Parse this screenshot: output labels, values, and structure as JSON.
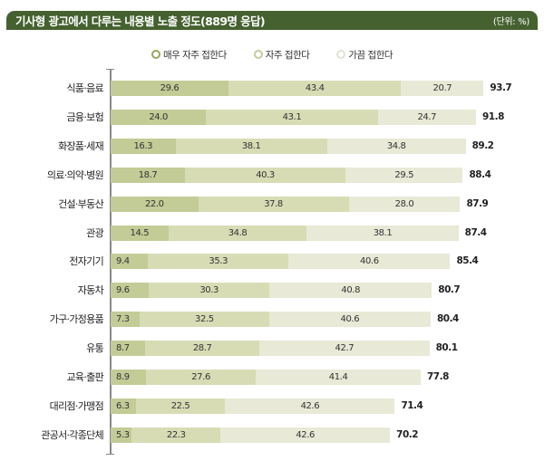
{
  "header": {
    "title": "기사형 광고에서 다루는 내용별 노출 정도(889명 응답)",
    "unit": "(단위: %)",
    "background": "#44612f"
  },
  "legend": [
    {
      "label": "매우 자주 접한다",
      "color": "#9aa55d"
    },
    {
      "label": "자주 접한다",
      "color": "#c6cc9c"
    },
    {
      "label": "가끔 접한다",
      "color": "#e2e3cf"
    }
  ],
  "colors": {
    "very_often": "#c3cb96",
    "often": "#d8dcb5",
    "sometimes": "#e8e9d6",
    "axis": "#888888"
  },
  "rows": [
    {
      "label": "식품·음료",
      "v1": "29.6",
      "v2": "43.4",
      "v3": "20.7",
      "total": "93.7"
    },
    {
      "label": "금융·보험",
      "v1": "24.0",
      "v2": "43.1",
      "v3": "24.7",
      "total": "91.8"
    },
    {
      "label": "화장품·세재",
      "v1": "16.3",
      "v2": "38.1",
      "v3": "34.8",
      "total": "89.2"
    },
    {
      "label": "의료·의약·병원",
      "v1": "18.7",
      "v2": "40.3",
      "v3": "29.5",
      "total": "88.4"
    },
    {
      "label": "건설·부동산",
      "v1": "22.0",
      "v2": "37.8",
      "v3": "28.0",
      "total": "87.9"
    },
    {
      "label": "관광",
      "v1": "14.5",
      "v2": "34.8",
      "v3": "38.1",
      "total": "87.4"
    },
    {
      "label": "전자기기",
      "v1": "9.4",
      "v2": "35.3",
      "v3": "40.6",
      "total": "85.4"
    },
    {
      "label": "자동차",
      "v1": "9.6",
      "v2": "30.3",
      "v3": "40.8",
      "total": "80.7"
    },
    {
      "label": "가구·가정용품",
      "v1": "7.3",
      "v2": "32.5",
      "v3": "40.6",
      "total": "80.4"
    },
    {
      "label": "유통",
      "v1": "8.7",
      "v2": "28.7",
      "v3": "42.7",
      "total": "80.1"
    },
    {
      "label": "교육·출판",
      "v1": "8.9",
      "v2": "27.6",
      "v3": "41.4",
      "total": "77.8"
    },
    {
      "label": "대리점·가맹점",
      "v1": "6.3",
      "v2": "22.5",
      "v3": "42.6",
      "total": "71.4"
    },
    {
      "label": "관공서·각종단체",
      "v1": "5.3",
      "v2": "22.3",
      "v3": "42.6",
      "total": "70.2"
    }
  ],
  "chart_data": {
    "type": "bar",
    "orientation": "horizontal",
    "stacked": true,
    "title": "기사형 광고에서 다루는 내용별 노출 정도(889명 응답)",
    "unit": "%",
    "xlabel": "",
    "ylabel": "",
    "legend_position": "top",
    "grid": false,
    "categories": [
      "식품·음료",
      "금융·보험",
      "화장품·세재",
      "의료·의약·병원",
      "건설·부동산",
      "관광",
      "전자기기",
      "자동차",
      "가구·가정용품",
      "유통",
      "교육·출판",
      "대리점·가맹점",
      "관공서·각종단체"
    ],
    "series": [
      {
        "name": "매우 자주 접한다",
        "values": [
          29.6,
          24.0,
          16.3,
          18.7,
          22.0,
          14.5,
          9.4,
          9.6,
          7.3,
          8.7,
          8.9,
          6.3,
          5.3
        ]
      },
      {
        "name": "자주 접한다",
        "values": [
          43.4,
          43.1,
          38.1,
          40.3,
          37.8,
          34.8,
          35.3,
          30.3,
          32.5,
          28.7,
          27.6,
          22.5,
          22.3
        ]
      },
      {
        "name": "가끔 접한다",
        "values": [
          20.7,
          24.7,
          34.8,
          29.5,
          28.0,
          38.1,
          40.6,
          40.8,
          40.6,
          42.7,
          41.4,
          42.6,
          42.6
        ]
      }
    ],
    "totals": [
      93.7,
      91.8,
      89.2,
      88.4,
      87.9,
      87.4,
      85.4,
      80.7,
      80.4,
      80.1,
      77.8,
      71.4,
      70.2
    ],
    "xlim": [
      0,
      100
    ]
  }
}
